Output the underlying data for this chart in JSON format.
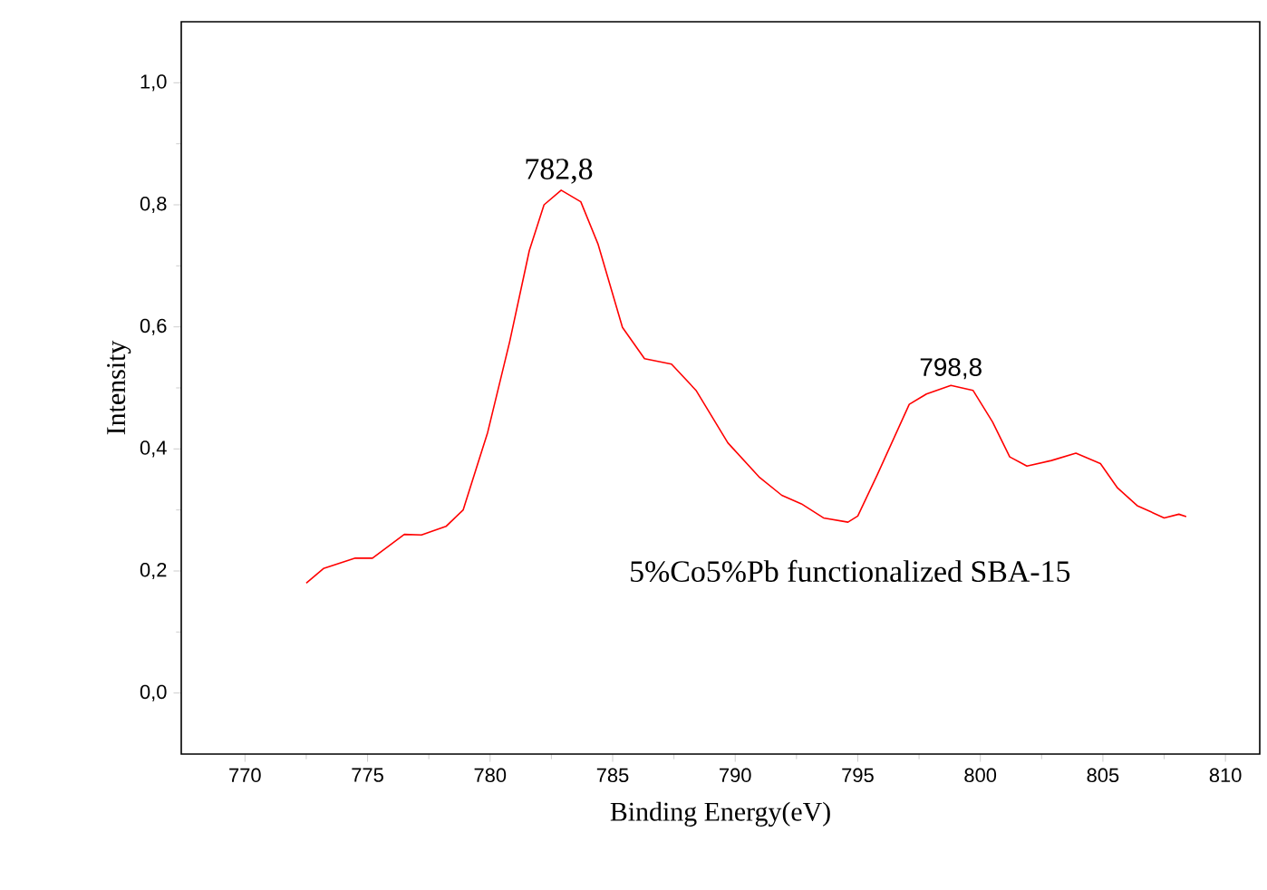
{
  "chart_data": {
    "type": "line",
    "xlabel": "Binding Energy(eV)",
    "ylabel": "Intensity",
    "x": [
      772.5,
      773.2,
      774.5,
      775.2,
      776.5,
      777.2,
      778.2,
      778.9,
      779.9,
      780.8,
      781.6,
      782.2,
      782.9,
      783.7,
      784.4,
      785.4,
      786.3,
      787.4,
      788.4,
      789.7,
      791.0,
      791.9,
      792.7,
      793.6,
      794.6,
      795.0,
      795.8,
      797.1,
      797.8,
      798.8,
      799.7,
      800.5,
      801.2,
      801.9,
      802.9,
      803.9,
      804.9,
      805.6,
      806.4,
      807.5,
      808.1,
      808.4
    ],
    "series": [
      {
        "color": "#ff0000",
        "values": [
          0.18,
          0.204,
          0.221,
          0.221,
          0.26,
          0.259,
          0.273,
          0.3,
          0.427,
          0.576,
          0.725,
          0.8,
          0.824,
          0.805,
          0.736,
          0.599,
          0.548,
          0.539,
          0.496,
          0.41,
          0.353,
          0.324,
          0.31,
          0.287,
          0.28,
          0.29,
          0.358,
          0.473,
          0.49,
          0.504,
          0.496,
          0.444,
          0.387,
          0.372,
          0.381,
          0.393,
          0.376,
          0.336,
          0.307,
          0.287,
          0.293,
          0.289
        ]
      }
    ],
    "xlim": [
      767.4,
      811.4
    ],
    "ylim": [
      -0.1,
      1.1
    ],
    "xticks": [
      770,
      775,
      780,
      785,
      790,
      795,
      800,
      805,
      810
    ],
    "yticks": [
      {
        "value": 0.0,
        "label": "0,0"
      },
      {
        "value": 0.2,
        "label": "0,2"
      },
      {
        "value": 0.4,
        "label": "0,4"
      },
      {
        "value": 0.6,
        "label": "0,6"
      },
      {
        "value": 0.8,
        "label": "0,8"
      },
      {
        "value": 1.0,
        "label": "1,0"
      }
    ],
    "annotations": [
      {
        "text": "782,8",
        "x": 782.8,
        "y": 0.824
      },
      {
        "text": "798,8",
        "x": 798.8,
        "y": 0.504
      },
      "5%Co5%Pb  functionalized SBA-15"
    ],
    "grid": false,
    "marker": "none",
    "line_style": "solid"
  }
}
